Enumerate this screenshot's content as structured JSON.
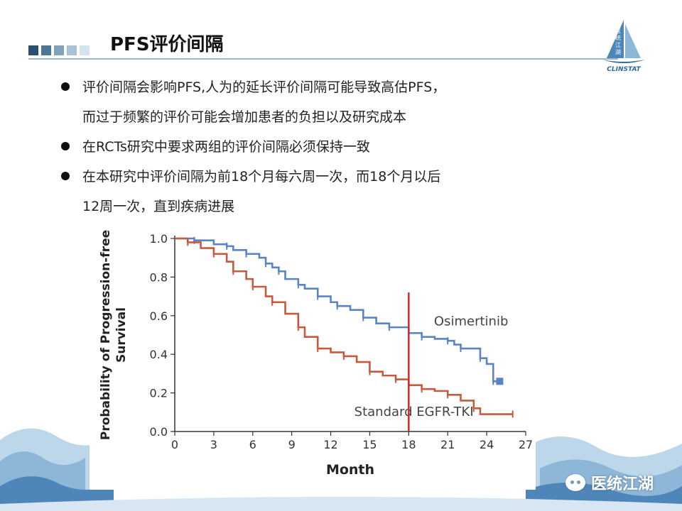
{
  "slide": {
    "title": "PFS评价间隔",
    "bullets": [
      {
        "line1": "评价间隔会影响PFS,人为的延长评价间隔可能导致高估PFS，",
        "line2": "而过于频繁的评价可能会增加患者的负担以及研究成本"
      },
      {
        "line1": "在RCTs研究中要求两组的评价间隔必须保持一致",
        "line2": ""
      },
      {
        "line1": "在本研究中评价间隔为前18个月每六周一次，而18个月以后",
        "line2": "12周一次，直到疾病进展"
      }
    ]
  },
  "logo": {
    "chars": [
      "医",
      "统",
      "江",
      "湖"
    ],
    "text": "CLINSTAT"
  },
  "watermark": {
    "text": "医统江湖",
    "icon": "wechat-icon"
  },
  "colors": {
    "osimertinib": "#5b84c4",
    "standard": "#c65a3f",
    "marker": "#d22a2a",
    "title_squares": [
      "#2b4f6e",
      "#4d7594",
      "#7fa2bd",
      "#a9c3d6",
      "#d5e3ec"
    ]
  },
  "chart_data": {
    "type": "line",
    "xlabel": "Month",
    "ylabel": "Probability of Progression-free Survival",
    "xlim": [
      0,
      27
    ],
    "ylim": [
      0,
      1
    ],
    "xticks": [
      0,
      3,
      6,
      9,
      12,
      15,
      18,
      21,
      24,
      27
    ],
    "yticks": [
      0.0,
      0.2,
      0.4,
      0.6,
      0.8,
      1.0
    ],
    "xtick_labels": [
      "0",
      "3",
      "6",
      "9",
      "12",
      "15",
      "18",
      "21",
      "24",
      "27"
    ],
    "ytick_labels": [
      "0.0",
      "0.2",
      "0.4",
      "0.6",
      "0.8",
      "1.0"
    ],
    "vline_x": 18,
    "series": [
      {
        "name": "Osimertinib",
        "x": [
          0,
          1.5,
          3,
          4,
          4.5,
          5.5,
          6.5,
          7,
          7.5,
          8,
          8.5,
          9.5,
          10,
          11,
          12,
          12.5,
          13.5,
          14.5,
          15.5,
          16.5,
          18,
          19,
          20,
          21,
          21.5,
          22,
          23,
          23.5,
          24,
          24.5,
          25
        ],
        "y": [
          1.0,
          0.99,
          0.97,
          0.96,
          0.94,
          0.92,
          0.9,
          0.87,
          0.85,
          0.83,
          0.79,
          0.76,
          0.74,
          0.7,
          0.67,
          0.65,
          0.63,
          0.59,
          0.56,
          0.54,
          0.51,
          0.49,
          0.48,
          0.47,
          0.45,
          0.43,
          0.43,
          0.38,
          0.35,
          0.26,
          0.26
        ]
      },
      {
        "name": "Standard EGFR-TKI",
        "x": [
          0,
          1,
          2,
          3,
          4,
          4.5,
          5.5,
          6,
          7,
          7.5,
          8.5,
          9.5,
          10,
          11,
          12,
          13,
          14,
          15,
          16,
          17,
          18,
          19,
          20,
          21,
          22,
          23,
          23.5,
          26
        ],
        "y": [
          1.0,
          0.98,
          0.95,
          0.92,
          0.88,
          0.83,
          0.79,
          0.75,
          0.7,
          0.67,
          0.61,
          0.54,
          0.49,
          0.43,
          0.41,
          0.39,
          0.36,
          0.31,
          0.29,
          0.27,
          0.24,
          0.22,
          0.21,
          0.19,
          0.16,
          0.12,
          0.09,
          0.09
        ]
      }
    ]
  }
}
